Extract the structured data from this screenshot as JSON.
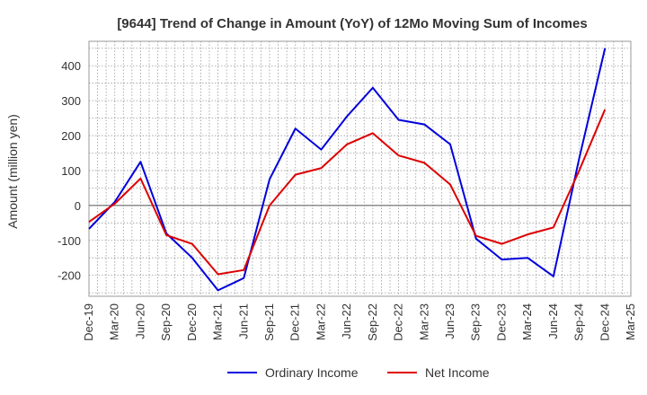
{
  "chart_data": {
    "type": "line",
    "title": "[9644]  Trend of Change in Amount (YoY) of 12Mo Moving Sum of Incomes",
    "xlabel": "",
    "ylabel": "Amount (million yen)",
    "ylim": [
      -260,
      470
    ],
    "yticks": [
      -200,
      -100,
      0,
      100,
      200,
      300,
      400
    ],
    "grid": true,
    "legend_position": "bottom",
    "x": [
      "Dec-19",
      "Mar-20",
      "Jun-20",
      "Sep-20",
      "Dec-20",
      "Mar-21",
      "Jun-21",
      "Sep-21",
      "Dec-21",
      "Mar-22",
      "Jun-22",
      "Sep-22",
      "Dec-22",
      "Mar-23",
      "Jun-23",
      "Sep-23",
      "Dec-23",
      "Mar-24",
      "Jun-24",
      "Sep-24",
      "Dec-24",
      "Mar-25"
    ],
    "series": [
      {
        "name": "Ordinary Income",
        "color": "#0000dd",
        "values": [
          -67,
          10,
          125,
          -80,
          -150,
          -243,
          -208,
          75,
          220,
          160,
          255,
          337,
          245,
          232,
          175,
          -95,
          -155,
          -150,
          -203,
          135,
          450,
          null
        ]
      },
      {
        "name": "Net Income",
        "color": "#dd0000",
        "values": [
          -47,
          5,
          77,
          -85,
          -110,
          -197,
          -185,
          0,
          88,
          107,
          175,
          207,
          143,
          122,
          60,
          -87,
          -110,
          -83,
          -63,
          100,
          275,
          null
        ]
      }
    ]
  }
}
